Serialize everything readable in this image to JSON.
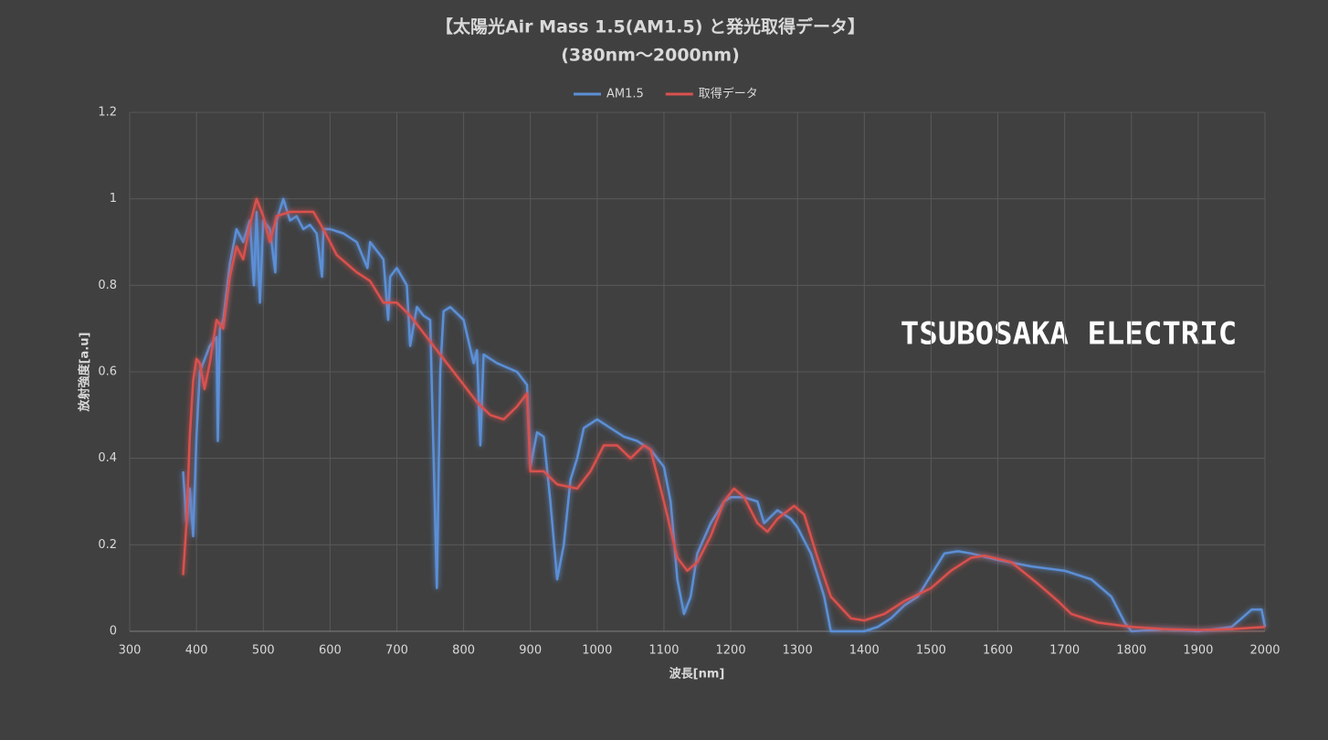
{
  "chart_data": {
    "type": "line",
    "title": "【太陽光Air Mass 1.5(AM1.5) と発光取得データ】",
    "subtitle": "(380nm～2000nm)",
    "x_label": "波長[nm]",
    "y_label": "放射強度[a.u]",
    "annotation": "TSUBOSAKA ELECTRIC",
    "xlim": [
      300,
      2000
    ],
    "xticks": [
      300,
      400,
      500,
      600,
      700,
      800,
      900,
      1000,
      1100,
      1200,
      1300,
      1400,
      1500,
      1600,
      1700,
      1800,
      1900,
      2000
    ],
    "ylim": [
      0,
      1.2
    ],
    "yticks": [
      0,
      0.2,
      0.4,
      0.6,
      0.8,
      1,
      1.2
    ],
    "grid": true,
    "legend": "top",
    "series": [
      {
        "name": "AM1.5",
        "color": "#5b8fd6",
        "x": [
          380,
          385,
          390,
          395,
          400,
          405,
          410,
          420,
          430,
          432,
          435,
          440,
          450,
          460,
          470,
          480,
          486,
          490,
          495,
          500,
          510,
          518,
          520,
          530,
          540,
          550,
          560,
          570,
          580,
          588,
          590,
          600,
          620,
          640,
          656,
          660,
          680,
          687,
          690,
          700,
          715,
          720,
          730,
          740,
          750,
          760,
          765,
          770,
          780,
          800,
          815,
          820,
          825,
          830,
          850,
          880,
          895,
          900,
          910,
          920,
          930,
          940,
          950,
          960,
          970,
          980,
          1000,
          1020,
          1040,
          1060,
          1080,
          1100,
          1110,
          1120,
          1130,
          1140,
          1150,
          1170,
          1190,
          1200,
          1220,
          1240,
          1250,
          1270,
          1290,
          1300,
          1320,
          1340,
          1350,
          1400,
          1420,
          1440,
          1460,
          1480,
          1500,
          1520,
          1540,
          1560,
          1600,
          1650,
          1700,
          1740,
          1770,
          1790,
          1800,
          1850,
          1900,
          1950,
          1980,
          1995,
          2000
        ],
        "values": [
          0.37,
          0.25,
          0.33,
          0.22,
          0.45,
          0.6,
          0.62,
          0.66,
          0.68,
          0.44,
          0.7,
          0.72,
          0.85,
          0.93,
          0.9,
          0.95,
          0.8,
          0.97,
          0.76,
          0.95,
          0.93,
          0.83,
          0.95,
          1.0,
          0.95,
          0.96,
          0.93,
          0.94,
          0.92,
          0.82,
          0.93,
          0.93,
          0.92,
          0.9,
          0.84,
          0.9,
          0.86,
          0.72,
          0.82,
          0.84,
          0.8,
          0.66,
          0.75,
          0.73,
          0.72,
          0.1,
          0.6,
          0.74,
          0.75,
          0.72,
          0.62,
          0.65,
          0.43,
          0.64,
          0.62,
          0.6,
          0.57,
          0.38,
          0.46,
          0.45,
          0.3,
          0.12,
          0.2,
          0.35,
          0.4,
          0.47,
          0.49,
          0.47,
          0.45,
          0.44,
          0.42,
          0.38,
          0.3,
          0.12,
          0.04,
          0.08,
          0.18,
          0.25,
          0.3,
          0.31,
          0.31,
          0.3,
          0.25,
          0.28,
          0.26,
          0.24,
          0.18,
          0.08,
          0,
          0,
          0.01,
          0.03,
          0.06,
          0.08,
          0.13,
          0.18,
          0.185,
          0.18,
          0.165,
          0.15,
          0.14,
          0.12,
          0.08,
          0.02,
          0,
          0.005,
          0,
          0.01,
          0.05,
          0.05,
          0.01
        ]
      },
      {
        "name": "取得データ",
        "color": "#d9514e",
        "x": [
          380,
          385,
          390,
          395,
          400,
          405,
          412,
          420,
          430,
          440,
          450,
          460,
          470,
          480,
          490,
          500,
          510,
          520,
          540,
          560,
          575,
          590,
          610,
          640,
          660,
          680,
          700,
          720,
          750,
          780,
          800,
          820,
          840,
          860,
          880,
          895,
          900,
          920,
          940,
          970,
          990,
          1010,
          1030,
          1050,
          1070,
          1080,
          1100,
          1120,
          1135,
          1150,
          1170,
          1190,
          1205,
          1220,
          1240,
          1255,
          1270,
          1295,
          1310,
          1330,
          1350,
          1380,
          1400,
          1430,
          1460,
          1500,
          1530,
          1560,
          1580,
          1620,
          1660,
          1690,
          1710,
          1750,
          1800,
          1850,
          1900,
          1950,
          2000
        ],
        "values": [
          0.13,
          0.25,
          0.45,
          0.58,
          0.63,
          0.62,
          0.56,
          0.62,
          0.72,
          0.7,
          0.82,
          0.89,
          0.86,
          0.94,
          1.0,
          0.96,
          0.9,
          0.96,
          0.97,
          0.97,
          0.97,
          0.93,
          0.87,
          0.83,
          0.81,
          0.76,
          0.76,
          0.73,
          0.67,
          0.61,
          0.57,
          0.53,
          0.5,
          0.49,
          0.52,
          0.55,
          0.37,
          0.37,
          0.34,
          0.33,
          0.37,
          0.43,
          0.43,
          0.4,
          0.43,
          0.42,
          0.3,
          0.17,
          0.14,
          0.16,
          0.22,
          0.3,
          0.33,
          0.31,
          0.25,
          0.23,
          0.26,
          0.29,
          0.27,
          0.17,
          0.08,
          0.03,
          0.025,
          0.04,
          0.07,
          0.1,
          0.14,
          0.17,
          0.175,
          0.16,
          0.11,
          0.07,
          0.04,
          0.02,
          0.01,
          0.005,
          0.003,
          0.005,
          0.01
        ]
      }
    ]
  }
}
